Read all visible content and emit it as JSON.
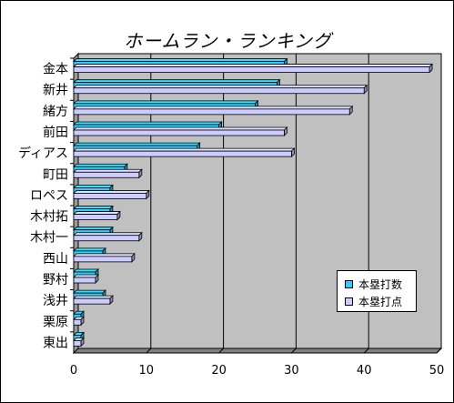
{
  "chart_data": {
    "type": "bar",
    "orientation": "horizontal",
    "title": "ホームラン・ランキング",
    "categories": [
      "金本",
      "新井",
      "緒方",
      "前田",
      "ディアス",
      "町田",
      "ロペス",
      "木村拓",
      "木村一",
      "西山",
      "野村",
      "浅井",
      "栗原",
      "東出"
    ],
    "series": [
      {
        "name": "本塁打数",
        "color": "#33ccff",
        "values": [
          29,
          28,
          25,
          20,
          17,
          7,
          5,
          5,
          5,
          4,
          3,
          4,
          1,
          1
        ]
      },
      {
        "name": "本塁打点",
        "color": "#ccccff",
        "values": [
          49,
          40,
          38,
          29,
          30,
          9,
          10,
          6,
          9,
          8,
          3,
          5,
          1,
          1
        ]
      }
    ],
    "xlim": [
      0,
      50
    ],
    "xticks": [
      0,
      10,
      20,
      30,
      40,
      50
    ],
    "grid": true,
    "legend_position": "right"
  }
}
